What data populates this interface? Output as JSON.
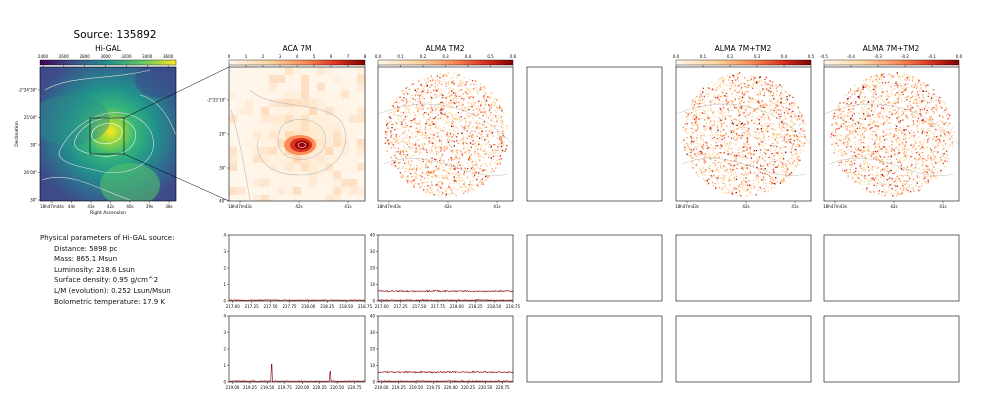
{
  "figure": {
    "title": "Source: 135892"
  },
  "panels": {
    "higal_title": "Hi-GAL",
    "aca_title": "ACA 7M",
    "alma_tm2_title": "ALMA TM2",
    "alma_7m_tm2_title": "ALMA 7M+TM2",
    "alma_7m_tm2_title_2": "ALMA 7M+TM2"
  },
  "params": {
    "header": "Physical parameters of Hi-GAL source:",
    "lines": [
      "Distance: 5898 pc",
      "Mass: 865.1 Msun",
      "Luminosity: 218.6 Lsun",
      "Surface density: 0.95 g/cm^2",
      "L/M (evolution): 0.252 Lsun/Msun",
      "Bolometric temperature: 17.9 K"
    ]
  },
  "colors": {
    "spectrum_line": "#8b0000",
    "frame": "#000000"
  },
  "chart_data": [
    {
      "type": "heatmap",
      "name": "Hi-GAL",
      "colorbar_ticks": [
        "2400",
        "2600",
        "2800",
        "3000",
        "3200",
        "3400",
        "3600"
      ],
      "colormap": "viridis",
      "xlabel": "Right Ascension",
      "ylabel": "Declination",
      "x_ticks": [
        "18h47m44s",
        "44s",
        "43s",
        "42s",
        "40s",
        "39s",
        "38s"
      ],
      "y_ticks": [
        "-2°24'30\"",
        "25'00\"",
        "30\"",
        "26'00\"",
        "30\""
      ]
    },
    {
      "type": "heatmap",
      "name": "ACA 7M",
      "colorbar_ticks": [
        "0",
        "1",
        "2",
        "3",
        "4",
        "5",
        "6",
        "7",
        "8"
      ],
      "colormap": "OrRd",
      "x_ticks": [
        "18h47m43s",
        "42s",
        "41s"
      ],
      "y_ticks": [
        "-2°25'10\"",
        "20\"",
        "30\"",
        "40\""
      ]
    },
    {
      "type": "heatmap",
      "name": "ALMA TM2",
      "colorbar_ticks": [
        "0.0",
        "0.1",
        "0.2",
        "0.3",
        "0.4",
        "0.5",
        "0.6"
      ],
      "colormap": "OrRd",
      "x_ticks": [
        "18h47m43s",
        "42s",
        "41s"
      ]
    },
    {
      "type": "heatmap",
      "name": "ALMA 7M+TM2",
      "colorbar_ticks": [
        "0.0",
        "0.1",
        "0.2",
        "0.3",
        "0.4",
        "0.5"
      ],
      "colormap": "OrRd",
      "x_ticks": [
        "18h47m43s",
        "42s",
        "41s"
      ]
    },
    {
      "type": "heatmap",
      "name": "ALMA 7M+TM2",
      "colorbar_ticks": [
        "-0.5",
        "-0.4",
        "-0.3",
        "-0.2",
        "-0.1",
        "0.0"
      ],
      "colormap": "OrRd",
      "x_ticks": [
        "18h47m43s",
        "42s",
        "41s"
      ]
    },
    {
      "type": "line",
      "name": "ACA spectrum spw1",
      "xlim": [
        216.95,
        218.75
      ],
      "ylim": [
        0,
        4
      ],
      "x_ticks": [
        "217.00",
        "217.25",
        "217.50",
        "217.75",
        "218.00",
        "218.25",
        "218.50",
        "218.75"
      ],
      "y_ticks": [
        "0",
        "1",
        "2",
        "3",
        "4"
      ],
      "series": [
        {
          "x": [
            216.95,
            218.75
          ],
          "y": [
            0.05,
            0.05
          ],
          "noise": 0.05
        }
      ]
    },
    {
      "type": "line",
      "name": "TM2 spectrum spw1",
      "xlim": [
        216.95,
        218.75
      ],
      "ylim": [
        0,
        40
      ],
      "x_ticks": [
        "217.00",
        "217.25",
        "217.50",
        "217.75",
        "218.00",
        "218.25",
        "218.50",
        "218.75"
      ],
      "y_ticks": [
        "0",
        "10",
        "20",
        "30",
        "40"
      ],
      "series": [
        {
          "x": [
            216.95,
            218.75
          ],
          "y": [
            0.5,
            0.5
          ],
          "noise": 0.6
        },
        {
          "x": [
            216.95,
            218.75
          ],
          "y": [
            6,
            6
          ],
          "noise": 0.8
        }
      ]
    },
    {
      "type": "line",
      "name": "ACA spectrum spw2",
      "xlim": [
        218.95,
        220.9
      ],
      "ylim": [
        0,
        4
      ],
      "x_ticks": [
        "219.00",
        "219.25",
        "219.50",
        "219.75",
        "220.00",
        "220.25",
        "220.50",
        "220.75"
      ],
      "y_ticks": [
        "0",
        "1",
        "2",
        "3",
        "4"
      ],
      "series": [
        {
          "x": [
            218.95,
            220.9
          ],
          "y": [
            0.05,
            0.05
          ],
          "noise": 0.05
        }
      ],
      "peaks": [
        {
          "x": 219.56,
          "y": 1.0
        },
        {
          "x": 220.4,
          "y": 0.6
        }
      ]
    },
    {
      "type": "line",
      "name": "TM2 spectrum spw2",
      "xlim": [
        218.95,
        220.9
      ],
      "ylim": [
        0,
        40
      ],
      "x_ticks": [
        "219.00",
        "219.25",
        "219.50",
        "219.75",
        "220.00",
        "220.25",
        "220.50",
        "220.75"
      ],
      "y_ticks": [
        "0",
        "10",
        "20",
        "30",
        "40"
      ],
      "series": [
        {
          "x": [
            218.95,
            220.9
          ],
          "y": [
            0.5,
            0.5
          ],
          "noise": 0.6
        },
        {
          "x": [
            218.95,
            220.9
          ],
          "y": [
            6,
            6
          ],
          "noise": 0.8
        }
      ]
    }
  ]
}
